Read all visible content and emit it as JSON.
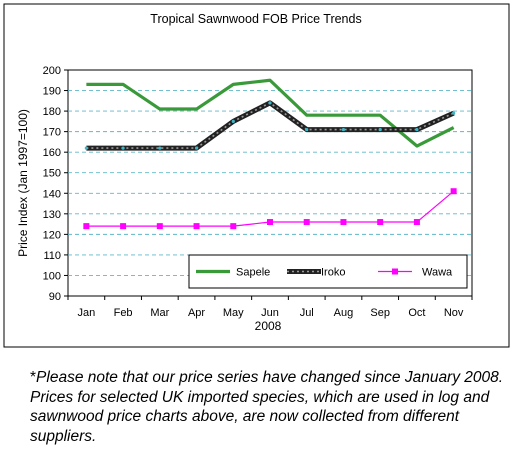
{
  "chart_data": {
    "type": "line",
    "title": "Tropical Sawnwood FOB Price Trends",
    "xlabel": "2008",
    "ylabel": "Price Index (Jan 1997=100)",
    "ylim": [
      90,
      200
    ],
    "yticks": [
      90,
      100,
      110,
      120,
      130,
      140,
      150,
      160,
      170,
      180,
      190,
      200
    ],
    "categories": [
      "Jan",
      "Feb",
      "Mar",
      "Apr",
      "May",
      "Jun",
      "Jul",
      "Aug",
      "Sep",
      "Oct",
      "Nov"
    ],
    "grid": "horizontal dashed",
    "legend_position": "bottom-right",
    "series": [
      {
        "name": "Sapele",
        "color": "#3a9a3a",
        "marker": "none",
        "values": [
          193,
          193,
          181,
          181,
          193,
          195,
          178,
          178,
          178,
          163,
          172
        ]
      },
      {
        "name": "Iroko",
        "color": "#222222",
        "marker": "dot",
        "values": [
          162,
          162,
          162,
          162,
          175,
          184,
          171,
          171,
          171,
          171,
          179
        ]
      },
      {
        "name": "Wawa",
        "color": "#ff00ff",
        "marker": "square",
        "values": [
          124,
          124,
          124,
          124,
          124,
          126,
          126,
          126,
          126,
          126,
          141
        ]
      }
    ]
  },
  "note": {
    "star": "*",
    "text": "Please note that our price series have changed since January 2008. Prices for selected UK imported species, which are used in log and sawnwood price charts above, are now collected from different suppliers."
  }
}
